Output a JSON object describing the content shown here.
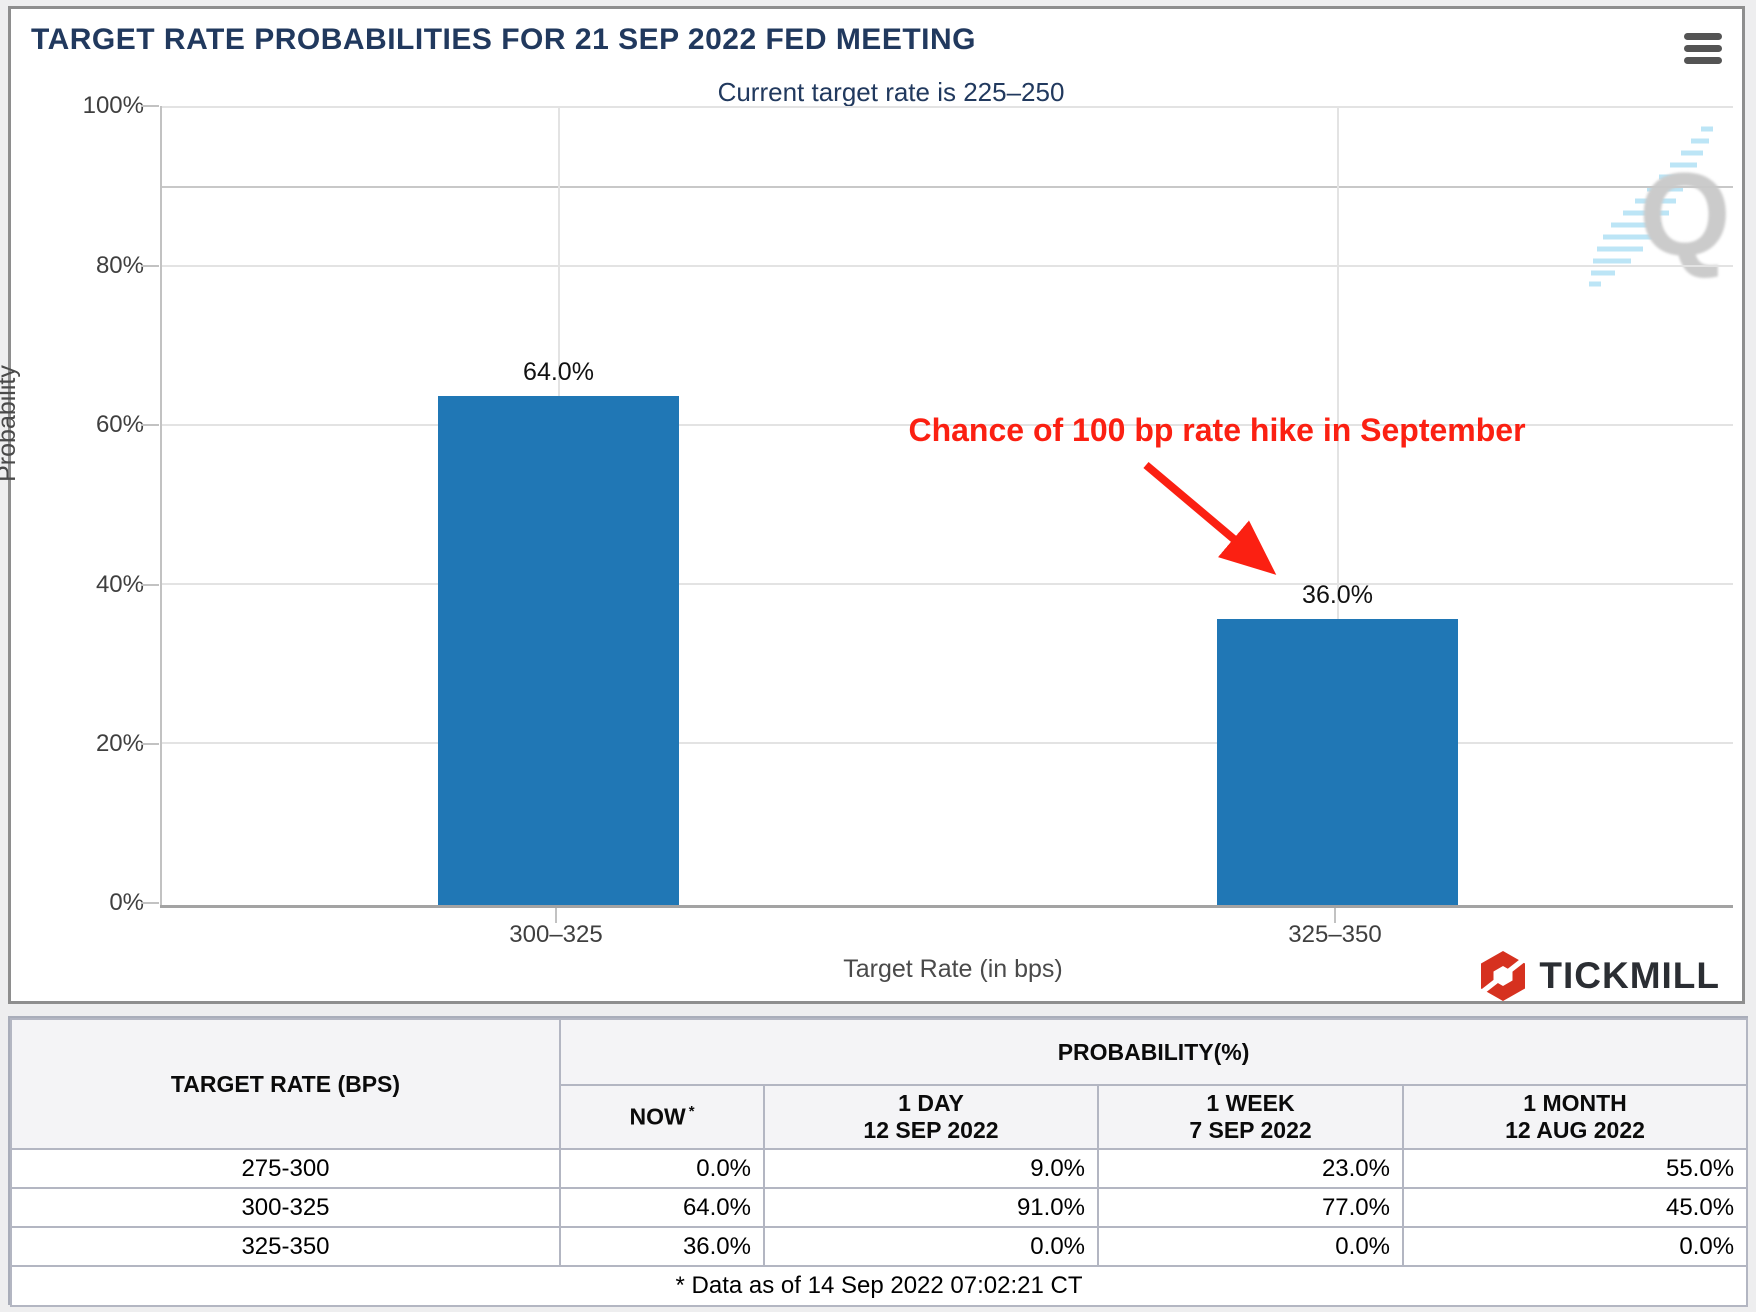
{
  "header": {
    "title": "TARGET RATE PROBABILITIES FOR 21 SEP 2022 FED MEETING",
    "subtitle": "Current target rate is 225–250",
    "menu_icon": "hamburger-icon"
  },
  "chart_data": {
    "type": "bar",
    "categories": [
      "300–325",
      "325–350"
    ],
    "values": [
      64.0,
      36.0
    ],
    "bar_labels": [
      "64.0%",
      "36.0%"
    ],
    "xlabel": "Target Rate (in bps)",
    "ylabel": "Probability",
    "ylim": [
      0,
      100
    ],
    "yticks": [
      "100%",
      "80%",
      "60%",
      "40%",
      "20%",
      "0%"
    ],
    "grid": true,
    "legend": "none",
    "bar_color": "#2077b5",
    "annotation": {
      "text": "Chance of 100 bp rate hike in September",
      "color": "#fb2012",
      "arrow": "points to 325-350 bar"
    }
  },
  "watermark": {
    "letter": "Q",
    "stripe_color": "#b5e3f6"
  },
  "logo": {
    "text": "TICKMILL",
    "mark_color": "#d6311f"
  },
  "table": {
    "col1_header": "TARGET RATE (BPS)",
    "group_header": "PROBABILITY(%)",
    "columns": [
      {
        "label": "NOW",
        "sup": "*",
        "sub": ""
      },
      {
        "label": "1 DAY",
        "sub": "12 SEP 2022"
      },
      {
        "label": "1 WEEK",
        "sub": "7 SEP 2022"
      },
      {
        "label": "1 MONTH",
        "sub": "12 AUG 2022"
      }
    ],
    "rows": [
      {
        "rate": "275-300",
        "values": [
          "0.0%",
          "9.0%",
          "23.0%",
          "55.0%"
        ]
      },
      {
        "rate": "300-325",
        "values": [
          "64.0%",
          "91.0%",
          "77.0%",
          "45.0%"
        ]
      },
      {
        "rate": "325-350",
        "values": [
          "36.0%",
          "0.0%",
          "0.0%",
          "0.0%"
        ]
      }
    ],
    "footnote": "* Data as of 14 Sep 2022 07:02:21 CT"
  }
}
